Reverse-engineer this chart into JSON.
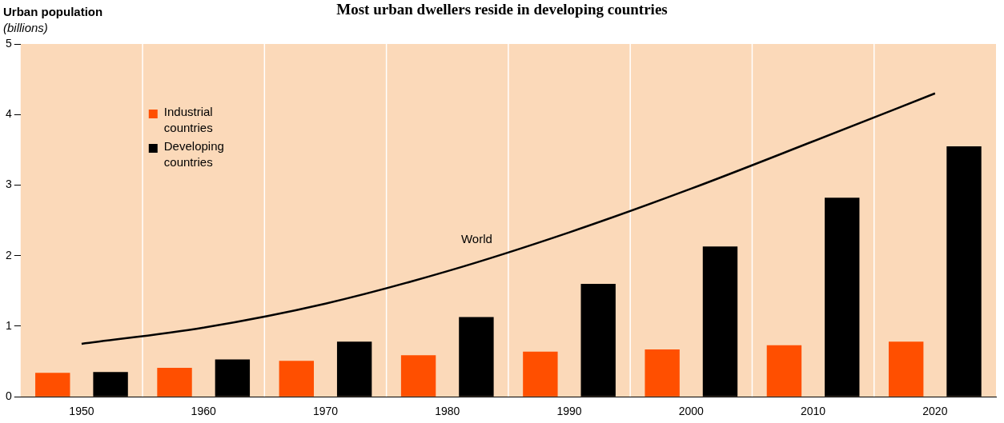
{
  "chart_data": {
    "type": "bar",
    "title": "Most urban dwellers reside in developing countries",
    "ylabel": "Urban population\n(billions)",
    "categories": [
      "1950",
      "1960",
      "1970",
      "1980",
      "1990",
      "2000",
      "2010",
      "2020"
    ],
    "series": [
      {
        "name": "Industrial countries",
        "color": "#ff4f00",
        "values": [
          0.34,
          0.41,
          0.51,
          0.59,
          0.64,
          0.67,
          0.73,
          0.78
        ]
      },
      {
        "name": "Developing countries",
        "color": "#000000",
        "values": [
          0.35,
          0.53,
          0.78,
          1.13,
          1.6,
          2.13,
          2.82,
          3.55
        ]
      },
      {
        "name": "World",
        "type": "line",
        "color": "#000000",
        "values": [
          0.75,
          0.98,
          1.32,
          1.78,
          2.33,
          2.95,
          3.62,
          4.3
        ]
      }
    ],
    "ylim": [
      0,
      5
    ],
    "yticks": [
      0,
      1,
      2,
      3,
      4,
      5
    ],
    "grid": "x",
    "legend": "top left",
    "marker": "none",
    "line_style": "solid"
  }
}
